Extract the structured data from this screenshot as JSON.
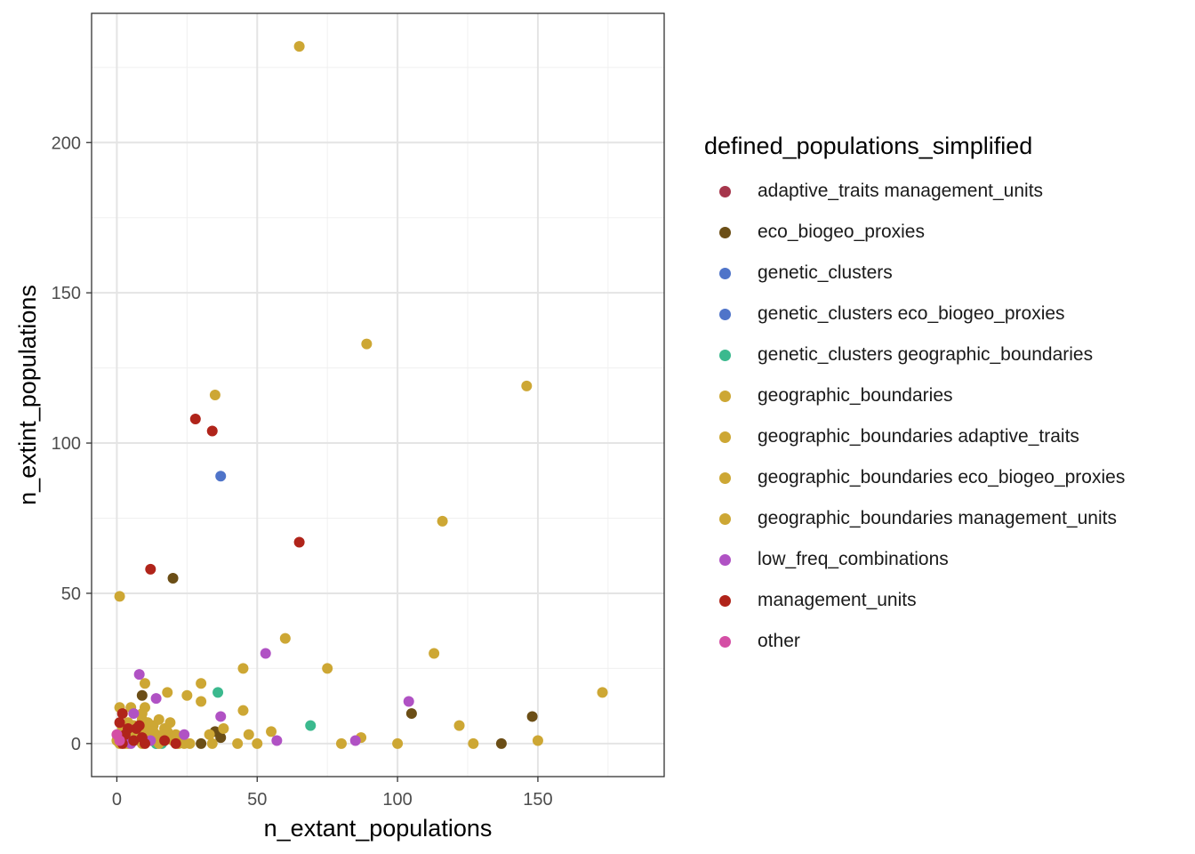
{
  "chart_data": {
    "type": "scatter",
    "xlabel": "n_extant_populations",
    "ylabel": "n_extint_populations",
    "xlim": [
      -9,
      195
    ],
    "ylim": [
      -11,
      243
    ],
    "x_ticks": [
      0,
      50,
      100,
      150
    ],
    "y_ticks": [
      0,
      50,
      100,
      150,
      200
    ],
    "grid": true,
    "legend_position": "right",
    "legend_title": "defined_populations_simplified",
    "series": [
      {
        "name": "adaptive_traits management_units",
        "color": "#A6364C",
        "points": [
          [
            1,
            3
          ],
          [
            2,
            1
          ],
          [
            3,
            2
          ]
        ]
      },
      {
        "name": "eco_biogeo_proxies",
        "color": "#6B4E16",
        "points": [
          [
            20,
            55
          ],
          [
            9,
            16
          ],
          [
            105,
            10
          ],
          [
            148,
            9
          ],
          [
            137,
            0
          ],
          [
            30,
            0
          ],
          [
            35,
            4
          ],
          [
            37,
            2
          ],
          [
            8,
            2
          ],
          [
            12,
            1
          ],
          [
            4,
            4
          ]
        ]
      },
      {
        "name": "genetic_clusters",
        "color": "#4F74C9",
        "points": [
          [
            37,
            89
          ],
          [
            6,
            2
          ],
          [
            10,
            3
          ]
        ]
      },
      {
        "name": "genetic_clusters eco_biogeo_proxies",
        "color": "#4F74C9",
        "points": [
          [
            14,
            0
          ],
          [
            8,
            1
          ]
        ]
      },
      {
        "name": "genetic_clusters geographic_boundaries",
        "color": "#3BB98E",
        "points": [
          [
            36,
            17
          ],
          [
            69,
            6
          ],
          [
            15,
            1
          ],
          [
            14,
            0
          ],
          [
            16,
            0
          ],
          [
            13,
            2
          ]
        ]
      },
      {
        "name": "geographic_boundaries",
        "color": "#CDA734",
        "points": [
          [
            65,
            232
          ],
          [
            89,
            133
          ],
          [
            146,
            119
          ],
          [
            35,
            116
          ],
          [
            116,
            74
          ],
          [
            1,
            49
          ],
          [
            60,
            35
          ],
          [
            113,
            30
          ],
          [
            45,
            25
          ],
          [
            75,
            25
          ],
          [
            10,
            20
          ],
          [
            30,
            20
          ],
          [
            18,
            17
          ],
          [
            173,
            17
          ],
          [
            25,
            16
          ],
          [
            30,
            14
          ],
          [
            45,
            11
          ],
          [
            10,
            12
          ],
          [
            1,
            12
          ],
          [
            5,
            12
          ],
          [
            9,
            10
          ],
          [
            122,
            6
          ],
          [
            38,
            5
          ],
          [
            55,
            4
          ],
          [
            47,
            3
          ],
          [
            33,
            3
          ],
          [
            87,
            2
          ],
          [
            150,
            1
          ],
          [
            80,
            0
          ],
          [
            100,
            0
          ],
          [
            127,
            0
          ],
          [
            50,
            0
          ],
          [
            43,
            0
          ],
          [
            34,
            0
          ],
          [
            24,
            0
          ]
        ]
      },
      {
        "name": "geographic_boundaries adaptive_traits",
        "color": "#CDA734",
        "points": [
          [
            2,
            5
          ],
          [
            4,
            7
          ],
          [
            6,
            3
          ],
          [
            8,
            6
          ],
          [
            11,
            4
          ],
          [
            13,
            6
          ],
          [
            15,
            8
          ],
          [
            17,
            5
          ],
          [
            19,
            7
          ],
          [
            21,
            3
          ],
          [
            3,
            0
          ],
          [
            5,
            1
          ],
          [
            7,
            4
          ],
          [
            9,
            8
          ],
          [
            11,
            2
          ]
        ]
      },
      {
        "name": "geographic_boundaries eco_biogeo_proxies",
        "color": "#CDA734",
        "points": [
          [
            0,
            1
          ],
          [
            2,
            2
          ],
          [
            4,
            0
          ],
          [
            6,
            6
          ],
          [
            8,
            3
          ],
          [
            10,
            5
          ],
          [
            12,
            1
          ],
          [
            14,
            3
          ],
          [
            16,
            2
          ],
          [
            18,
            4
          ],
          [
            20,
            1
          ],
          [
            22,
            0
          ]
        ]
      },
      {
        "name": "geographic_boundaries management_units",
        "color": "#CDA734",
        "points": [
          [
            1,
            0
          ],
          [
            3,
            4
          ],
          [
            5,
            6
          ],
          [
            7,
            2
          ],
          [
            9,
            0
          ],
          [
            11,
            7
          ],
          [
            13,
            4
          ],
          [
            15,
            0
          ],
          [
            17,
            3
          ],
          [
            19,
            2
          ],
          [
            23,
            1
          ],
          [
            26,
            0
          ]
        ]
      },
      {
        "name": "low_freq_combinations",
        "color": "#B052C4",
        "points": [
          [
            53,
            30
          ],
          [
            8,
            23
          ],
          [
            14,
            15
          ],
          [
            37,
            9
          ],
          [
            104,
            14
          ],
          [
            57,
            1
          ],
          [
            85,
            1
          ],
          [
            6,
            10
          ],
          [
            24,
            3
          ],
          [
            12,
            1
          ],
          [
            3,
            2
          ],
          [
            5,
            0
          ]
        ]
      },
      {
        "name": "management_units",
        "color": "#B0241A",
        "points": [
          [
            28,
            108
          ],
          [
            34,
            104
          ],
          [
            65,
            67
          ],
          [
            12,
            58
          ],
          [
            2,
            10
          ],
          [
            1,
            7
          ],
          [
            4,
            5
          ],
          [
            7,
            5
          ],
          [
            8,
            6
          ],
          [
            17,
            1
          ],
          [
            21,
            0
          ],
          [
            3,
            3
          ],
          [
            6,
            1
          ],
          [
            9,
            2
          ],
          [
            10,
            0
          ],
          [
            2,
            0
          ]
        ]
      },
      {
        "name": "other",
        "color": "#D44FA5",
        "points": [
          [
            0,
            3
          ],
          [
            1,
            1
          ]
        ]
      }
    ]
  }
}
